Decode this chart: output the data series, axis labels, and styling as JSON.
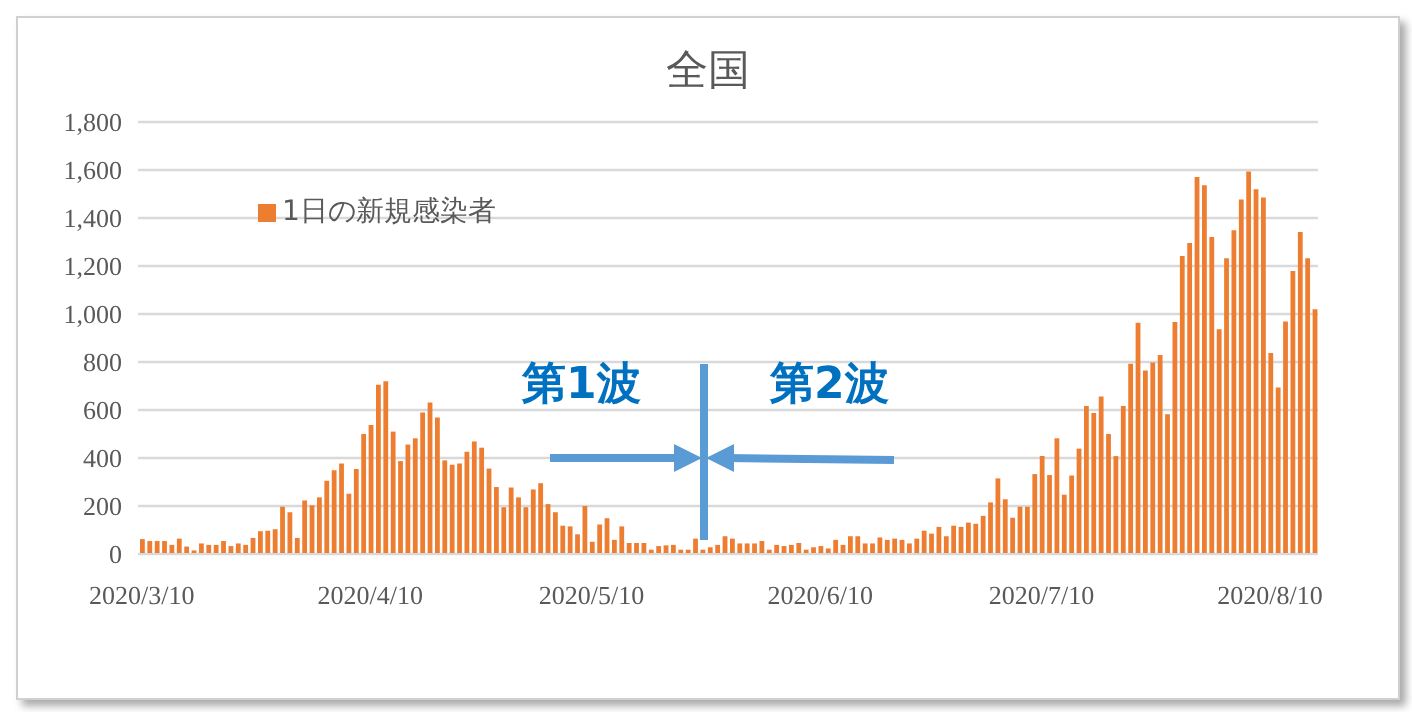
{
  "chart_data": {
    "type": "bar",
    "title": "全国",
    "categories": [
      "2020/3/10",
      null,
      null,
      null,
      null,
      null,
      null,
      null,
      null,
      null,
      null,
      null,
      null,
      null,
      null,
      null,
      null,
      null,
      null,
      null,
      null,
      null,
      null,
      null,
      null,
      null,
      null,
      null,
      null,
      null,
      null,
      "2020/4/10",
      null,
      null,
      null,
      null,
      null,
      null,
      null,
      null,
      null,
      null,
      null,
      null,
      null,
      null,
      null,
      null,
      null,
      null,
      null,
      null,
      null,
      null,
      null,
      null,
      null,
      null,
      null,
      null,
      null,
      "2020/5/10",
      null,
      null,
      null,
      null,
      null,
      null,
      null,
      null,
      null,
      null,
      null,
      null,
      null,
      null,
      null,
      null,
      null,
      null,
      null,
      null,
      null,
      null,
      null,
      null,
      null,
      null,
      null,
      null,
      null,
      null,
      "2020/6/10",
      null,
      null,
      null,
      null,
      null,
      null,
      null,
      null,
      null,
      null,
      null,
      null,
      null,
      null,
      null,
      null,
      null,
      null,
      null,
      null,
      null,
      null,
      null,
      null,
      null,
      null,
      null,
      null,
      null,
      "2020/7/10",
      null,
      null,
      null,
      null,
      null,
      null,
      null,
      null,
      null,
      null,
      null,
      null,
      null,
      null,
      null,
      null,
      null,
      null,
      null,
      null,
      null,
      null,
      null,
      null,
      null,
      null,
      null,
      null,
      null,
      null,
      "2020/8/10",
      null,
      null,
      null,
      null,
      null,
      null
    ],
    "series": [
      {
        "name": "1日の新規感染者",
        "color": "#ed7d31",
        "values": [
          62,
          54,
          54,
          54,
          38,
          64,
          31,
          15,
          44,
          38,
          38,
          54,
          33,
          44,
          38,
          67,
          95,
          97,
          103,
          197,
          174,
          67,
          223,
          203,
          236,
          305,
          349,
          377,
          251,
          354,
          500,
          538,
          705,
          720,
          510,
          387,
          456,
          482,
          590,
          631,
          569,
          390,
          372,
          377,
          426,
          469,
          443,
          356,
          279,
          195,
          277,
          236,
          195,
          269,
          295,
          208,
          174,
          118,
          115,
          82,
          200,
          51,
          123,
          149,
          59,
          115,
          46,
          46,
          46,
          18,
          33,
          36,
          38,
          18,
          18,
          64,
          18,
          28,
          38,
          74,
          64,
          44,
          44,
          44,
          54,
          18,
          38,
          33,
          38,
          46,
          18,
          28,
          33,
          23,
          59,
          38,
          74,
          74,
          44,
          44,
          69,
          59,
          64,
          59,
          44,
          64,
          97,
          85,
          113,
          74,
          118,
          113,
          131,
          126,
          159,
          215,
          315,
          228,
          151,
          197,
          197,
          333,
          408,
          329,
          482,
          247,
          327,
          439,
          617,
          587,
          656,
          500,
          408,
          617,
          793,
          964,
          765,
          798,
          829,
          582,
          967,
          1242,
          1296,
          1571,
          1536,
          1321,
          936,
          1232,
          1349,
          1477,
          1594,
          1520,
          1485,
          837,
          694,
          969,
          1179,
          1342,
          1232,
          1020
        ]
      }
    ],
    "ylim": [
      0,
      1800
    ],
    "yticks": [
      0,
      200,
      400,
      600,
      800,
      {
        "value": 1000,
        "label": "1,000"
      },
      {
        "value": 1200,
        "label": "1,200"
      },
      {
        "value": 1400,
        "label": "1,400"
      },
      {
        "value": 1600,
        "label": "1,600"
      },
      {
        "value": 1800,
        "label": "1,800"
      }
    ],
    "grid": "y",
    "legend": "top left",
    "annotations": [
      "第1波",
      "第2波"
    ]
  }
}
